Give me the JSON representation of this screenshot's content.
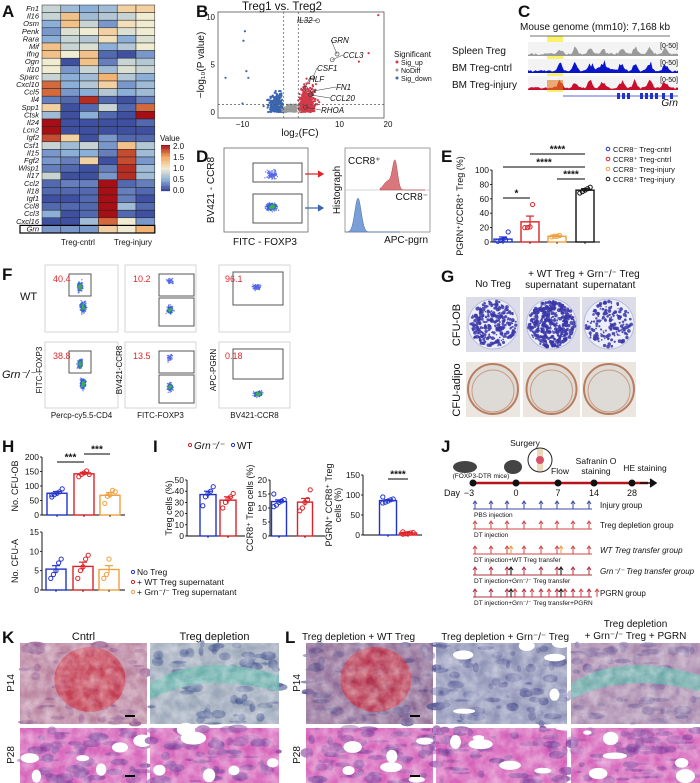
{
  "figure": {
    "panel_labels": [
      "A",
      "B",
      "C",
      "D",
      "E",
      "F",
      "G",
      "H",
      "I",
      "J",
      "K",
      "L"
    ],
    "colors": {
      "blue": "#2233cc",
      "red": "#dd2228",
      "orange": "#eea040",
      "black": "#111111",
      "sig_up": "#d23a4a",
      "nodiff": "#9a9a9a",
      "sig_down": "#3b66b0"
    },
    "C": {
      "title": "Mouse genome (mm10): 7,168 kb",
      "tracks": [
        {
          "name": "Spleen Treg",
          "range": "[0-50]",
          "color": "#9a9a9a"
        },
        {
          "name": "BM Treg-cntrl",
          "range": "[0-50]",
          "color": "#0a14c8"
        },
        {
          "name": "BM Treg-injury",
          "range": "[0-50]",
          "color": "#c8102e"
        }
      ],
      "gene": "Grn"
    },
    "D": {
      "ylabel": "BV421 - CCR8",
      "xlabel": "FITC - FOXP3",
      "hist_label": "Histograph",
      "pos_label": "CCR8⁺",
      "neg_label": "CCR8⁻",
      "hist_xlabel": "APC-pgrn"
    },
    "F": {
      "rows": [
        "WT",
        "Grn⁻/⁻"
      ],
      "ylabels": [
        "FITC-FOXP3",
        "BV421-CCR8",
        "APC-PGRN"
      ],
      "xlabels": [
        "Percp-cy5.5-CD4",
        "FITC-FOXP3",
        "BV421-CCR8"
      ],
      "gate_values": [
        [
          "40.4",
          "10.2",
          "96.1"
        ],
        [
          "38.8",
          "13.5",
          "0.18"
        ]
      ]
    },
    "G": {
      "columns": [
        "No Treg",
        "+ WT Treg supernatant",
        "+ Grn⁻/⁻ Treg supernatant"
      ],
      "rows": [
        "CFU-OB",
        "CFU-adipo"
      ]
    },
    "H_legend": [
      "No Treg",
      "+ WT Treg supernatant",
      "+ Grn⁻/⁻ Treg supernatant"
    ],
    "I_legend": [
      "Grn⁻/⁻",
      "WT"
    ],
    "J": {
      "mouse_label": "(FOXP3-DTR mice)",
      "events": [
        {
          "day": "-3",
          "label": ""
        },
        {
          "day": "0",
          "label": "Surgery"
        },
        {
          "day": "7",
          "label": "Flow"
        },
        {
          "day": "14",
          "label": "Safranin O staining"
        },
        {
          "day": "28",
          "label": "HE staining"
        }
      ],
      "day_prefix": "Day",
      "groups": [
        {
          "name": "Injury group",
          "treatment": "PBS injection"
        },
        {
          "name": "Treg depletion group",
          "treatment": "DT injection"
        },
        {
          "name": "WT Treg transfer group",
          "treatment": "DT injection+WT Treg transfer"
        },
        {
          "name": "Grn⁻/⁻ Treg transfer group",
          "treatment": "DT injection+Grn⁻/⁻ Treg transfer"
        },
        {
          "name": "PGRN group",
          "treatment": "DT injection+Grn⁻/⁻ Treg transfer+PGRN"
        }
      ]
    },
    "K": {
      "columns": [
        "Cntrl",
        "Treg depletion"
      ],
      "rows": [
        "P14",
        "P28"
      ]
    },
    "L": {
      "columns": [
        "Treg depletion + WT Treg",
        "Treg depletion + Grn⁻/⁻ Treg",
        "Treg depletion + Grn⁻/⁻ Treg + PGRN"
      ],
      "rows": [
        "P14",
        "P28"
      ]
    }
  },
  "chart_data": [
    {
      "id": "A",
      "type": "heatmap",
      "rows": [
        "Fn1",
        "Il16",
        "Osm",
        "Penk",
        "Rara",
        "Mif",
        "Ifng",
        "Ogn",
        "Il10",
        "Sparc",
        "Cxcl10",
        "Ccl5",
        "Il4",
        "Spp1",
        "Ctsk",
        "Il24",
        "Lcn2",
        "Igf2",
        "Csf1",
        "Il15",
        "Fgf2",
        "Wisp1",
        "Il17",
        "Ccl2",
        "Il18",
        "Igf1",
        "Ccl8",
        "Ccl3",
        "Cxcl16",
        "Grn"
      ],
      "groups": [
        "Treg-cntrl",
        "Treg-injury"
      ],
      "values": [
        [
          0.8,
          0.6,
          0.5,
          0.6,
          1.2,
          1.2
        ],
        [
          0.8,
          1.3,
          0.6,
          0.7,
          0.8,
          1.0
        ],
        [
          0.5,
          1.3,
          0.8,
          0.4,
          1.1,
          1.0
        ],
        [
          0.4,
          0.9,
          1.0,
          1.2,
          0.9,
          1.0
        ],
        [
          0.5,
          0.8,
          0.7,
          1.1,
          0.5,
          0.9
        ],
        [
          1.3,
          0.8,
          0.9,
          0.5,
          0.7,
          1.0
        ],
        [
          1.3,
          1.0,
          1.3,
          0.2,
          0.1,
          0.4
        ],
        [
          1.0,
          0.1,
          1.3,
          0.3,
          0.8,
          0.7
        ],
        [
          1.0,
          0.4,
          0.8,
          0.6,
          0.9,
          0.8
        ],
        [
          0.8,
          0.5,
          0.6,
          1.4,
          0.7,
          0.5
        ],
        [
          1.7,
          0.5,
          0.7,
          1.2,
          0.4,
          0.6
        ],
        [
          1.7,
          0.4,
          0.5,
          0.7,
          0.5,
          0.6
        ],
        [
          0.3,
          0.2,
          1.9,
          0.2,
          0.1,
          0.3
        ],
        [
          1.2,
          0.1,
          0.2,
          0.8,
          0.2,
          1.7
        ],
        [
          0.6,
          0.1,
          0.5,
          0.2,
          0.1,
          2.0
        ],
        [
          2.0,
          0.1,
          0.1,
          0.1,
          0.1,
          0.2
        ],
        [
          2.0,
          0.1,
          0.1,
          0.1,
          0.1,
          0.1
        ],
        [
          1.8,
          1.2,
          0.1,
          0.4,
          0.2,
          0.2
        ],
        [
          0.8,
          0.6,
          0.8,
          0.4,
          1.3,
          0.7
        ],
        [
          0.4,
          0.5,
          0.5,
          0.3,
          1.8,
          0.6
        ],
        [
          0.4,
          0.3,
          1.2,
          0.1,
          1.8,
          0.4
        ],
        [
          0.3,
          0.2,
          0.1,
          0.3,
          1.9,
          0.6
        ],
        [
          0.8,
          0.1,
          0.1,
          0.4,
          1.9,
          0.6
        ],
        [
          0.2,
          0.3,
          0.3,
          2.0,
          0.2,
          0.3
        ],
        [
          0.2,
          0.2,
          0.2,
          2.0,
          0.3,
          0.2
        ],
        [
          0.1,
          0.1,
          0.2,
          2.0,
          0.3,
          0.1
        ],
        [
          0.2,
          0.2,
          0.2,
          2.0,
          0.6,
          0.2
        ],
        [
          0.5,
          0.1,
          0.2,
          2.0,
          0.2,
          0.1
        ],
        [
          0.1,
          0.1,
          0.6,
          1.7,
          1.0,
          0.4
        ],
        [
          0.4,
          0.4,
          0.4,
          1.2,
          1.0,
          1.4
        ]
      ],
      "highlighted_row": "Grn",
      "colorbar": {
        "title": "Value",
        "ticks": [
          "2.0",
          "1.5",
          "1.0",
          "0.5",
          "0.0"
        ],
        "range": [
          0,
          2
        ]
      }
    },
    {
      "id": "B",
      "type": "scatter",
      "title": "Treg1 vs. Treg2",
      "xlabel": "log₂(FC)",
      "ylabel": "−log₁₀(P value)",
      "xticks": [
        "−10",
        "10",
        "20"
      ],
      "yticks": [
        "0",
        "5",
        "10"
      ],
      "xlim": [
        -15,
        20
      ],
      "ylim": [
        -1,
        10.5
      ],
      "thresholds": {
        "log2fc": [
          -1.5,
          1.5
        ],
        "neg_log10_p": 0.8
      },
      "legend": {
        "title": "Significant",
        "entries": [
          "Sig_up",
          "NoDiff",
          "Sig_down"
        ],
        "placement": "right"
      },
      "labeled_genes": [
        {
          "name": "IL32",
          "x": 5.5,
          "y": 9.6
        },
        {
          "name": "GRN",
          "x": 9.5,
          "y": 6.1
        },
        {
          "name": "CCL3",
          "x": 8.5,
          "y": 5.5
        },
        {
          "name": "CSF1",
          "x": 4.5,
          "y": 3.6
        },
        {
          "name": "HLF",
          "x": 3.0,
          "y": 2.5
        },
        {
          "name": "FN1",
          "x": 4.5,
          "y": 2.2
        },
        {
          "name": "CCL20",
          "x": 4.0,
          "y": 1.8
        },
        {
          "name": "RHOA",
          "x": 3.0,
          "y": 0.5
        }
      ]
    },
    {
      "id": "E",
      "type": "bar",
      "ylabel": "PGRN⁺/CCR8⁺ Treg (%)",
      "ylim": [
        0,
        100
      ],
      "yticks": [
        "0",
        "20",
        "40",
        "60",
        "80",
        "100"
      ],
      "legend": {
        "entries": [
          "CCR8⁻ Treg-cntrl",
          "CCR8⁺ Treg-cntrl",
          "CCR8⁻ Treg-injury",
          "CCR8⁺ Treg-injury"
        ],
        "placement": "top-right"
      },
      "series": [
        {
          "name": "CCR8⁻ Treg-cntrl",
          "mean": 4,
          "sem": 3,
          "points": [
            1,
            2,
            3,
            3,
            14
          ]
        },
        {
          "name": "CCR8⁺ Treg-cntrl",
          "mean": 28,
          "sem": 8,
          "points": [
            20,
            20,
            21,
            52
          ]
        },
        {
          "name": "CCR8⁻ Treg-injury",
          "mean": 8,
          "sem": 1,
          "points": [
            7,
            8,
            8,
            9
          ]
        },
        {
          "name": "CCR8⁺ Treg-injury",
          "mean": 72,
          "sem": 2,
          "points": [
            68,
            70,
            72,
            74,
            76
          ]
        }
      ],
      "significance": [
        {
          "pair": [
            0,
            1
          ],
          "label": "*"
        },
        {
          "pair": [
            1,
            3
          ],
          "label": "****"
        },
        {
          "pair": [
            0,
            3
          ],
          "label": "****"
        },
        {
          "pair": [
            2,
            3
          ],
          "label": "****"
        }
      ]
    },
    {
      "id": "H1",
      "type": "bar",
      "ylabel": "No. CFU-OB",
      "ylim": [
        0,
        200
      ],
      "yticks": [
        "0",
        "50",
        "100",
        "150",
        "200"
      ],
      "series": [
        {
          "name": "No Treg",
          "mean": 75,
          "sem": 6,
          "points": [
            62,
            70,
            75,
            80,
            90,
            70
          ]
        },
        {
          "name": "+ WT Treg supernatant",
          "mean": 142,
          "sem": 5,
          "points": [
            132,
            140,
            145,
            152,
            140
          ]
        },
        {
          "name": "+ Grn⁻/⁻ Treg supernatant",
          "mean": 68,
          "sem": 9,
          "points": [
            40,
            65,
            70,
            85,
            80
          ]
        }
      ],
      "significance": [
        {
          "pair": [
            0,
            1
          ],
          "label": "***"
        },
        {
          "pair": [
            1,
            2
          ],
          "label": "***"
        }
      ]
    },
    {
      "id": "H2",
      "type": "bar",
      "ylabel": "No. CFU-A",
      "ylim": [
        0,
        15
      ],
      "yticks": [
        "0",
        "5",
        "10",
        "15"
      ],
      "series": [
        {
          "name": "No Treg",
          "mean": 5.4,
          "sem": 0.9,
          "points": [
            3,
            4,
            5,
            7,
            8
          ]
        },
        {
          "name": "+ WT Treg supernatant",
          "mean": 6.1,
          "sem": 1.1,
          "points": [
            3,
            5,
            6,
            8,
            9
          ]
        },
        {
          "name": "+ Grn⁻/⁻ Treg supernatant",
          "mean": 5.3,
          "sem": 1.0,
          "points": [
            3,
            4,
            8
          ]
        }
      ],
      "significance": []
    },
    {
      "id": "I1",
      "type": "bar",
      "ylabel": "Treg cells (%)",
      "ylim": [
        0,
        50
      ],
      "yticks": [
        "0",
        "10",
        "20",
        "30",
        "40",
        "50"
      ],
      "series": [
        {
          "name": "WT",
          "mean": 37,
          "sem": 3,
          "points": [
            27,
            35,
            38,
            40,
            44
          ]
        },
        {
          "name": "Grn⁻/⁻",
          "mean": 32,
          "sem": 3,
          "points": [
            25,
            30,
            33,
            35,
            38
          ]
        }
      ],
      "significance": []
    },
    {
      "id": "I2",
      "type": "bar",
      "ylabel": "CCR8⁺ Treg cells (%)",
      "ylim": [
        0,
        20
      ],
      "yticks": [
        "0",
        "5",
        "10",
        "15",
        "20"
      ],
      "series": [
        {
          "name": "WT",
          "mean": 12.3,
          "sem": 0.6,
          "points": [
            10.5,
            11,
            12,
            12.5,
            13,
            15
          ]
        },
        {
          "name": "Grn⁻/⁻",
          "mean": 12.1,
          "sem": 1.3,
          "points": [
            9,
            10,
            12,
            13,
            16.5
          ]
        }
      ],
      "significance": []
    },
    {
      "id": "I3",
      "type": "bar",
      "ylabel": "PGRN⁺ CCR8⁺ Treg cells (%)",
      "ylim": [
        0,
        150
      ],
      "yticks": [
        "0",
        "50",
        "100",
        "150"
      ],
      "series": [
        {
          "name": "WT",
          "mean": 86,
          "sem": 2,
          "points": [
            80,
            82,
            85,
            88,
            90,
            95
          ]
        },
        {
          "name": "Grn⁻/⁻",
          "mean": 5,
          "sem": 1,
          "points": [
            2,
            3,
            4,
            5,
            6,
            8
          ]
        }
      ],
      "significance": [
        {
          "pair": [
            0,
            1
          ],
          "label": "****"
        }
      ]
    }
  ]
}
